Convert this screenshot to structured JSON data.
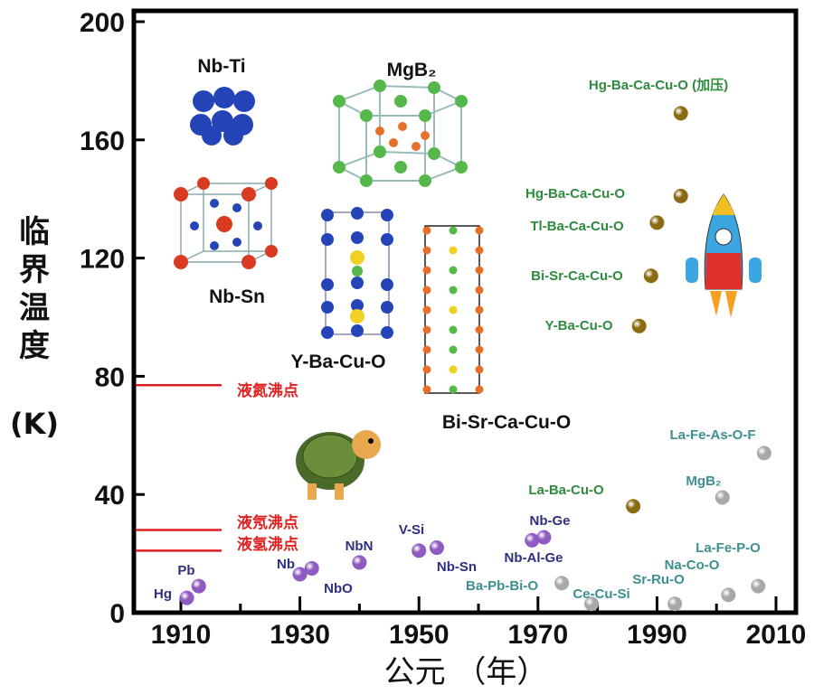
{
  "chart_data": {
    "type": "scatter",
    "title": "",
    "xlabel": "公元 （年）",
    "ylabel_chars": [
      "临",
      "界",
      "温",
      "度"
    ],
    "ylabel_unit": "(K)",
    "xlim": [
      1902,
      2012
    ],
    "ylim": [
      0,
      200
    ],
    "xticks": [
      1910,
      1930,
      1950,
      1970,
      1990,
      2010
    ],
    "yticks": [
      0,
      40,
      80,
      120,
      160,
      200
    ],
    "grid": false,
    "colors": {
      "conventional": "#8e5bc0",
      "other": "#a8a8a8",
      "cuprate": "#8a6a12",
      "conventional_label": "#2d2f80",
      "other_label": "#3d8f8f",
      "cuprate_label": "#2e8b3e",
      "reference": "#e02020"
    },
    "points": [
      {
        "name": "Hg",
        "x": 1911,
        "y": 5,
        "group": "conventional"
      },
      {
        "name": "Pb",
        "x": 1913,
        "y": 9,
        "group": "conventional"
      },
      {
        "name": "Nb",
        "x": 1930,
        "y": 13,
        "group": "conventional"
      },
      {
        "name": "NbO",
        "x": 1932,
        "y": 15,
        "group": "conventional"
      },
      {
        "name": "NbN",
        "x": 1940,
        "y": 17,
        "group": "conventional"
      },
      {
        "name": "V-Si",
        "x": 1950,
        "y": 21,
        "group": "conventional"
      },
      {
        "name": "Nb-Sn",
        "x": 1953,
        "y": 22,
        "group": "conventional"
      },
      {
        "name": "Nb-Ge",
        "x": 1969,
        "y": 24.5,
        "group": "conventional"
      },
      {
        "name": "Nb-Al-Ge",
        "x": 1971,
        "y": 25.5,
        "group": "conventional"
      },
      {
        "name": "Ba-Pb-Bi-O",
        "x": 1974,
        "y": 10,
        "group": "other"
      },
      {
        "name": "Ce-Cu-Si",
        "x": 1979,
        "y": 3,
        "group": "other"
      },
      {
        "name": "Sr-Ru-O",
        "x": 1993,
        "y": 3,
        "group": "other"
      },
      {
        "name": "Na-Co-O",
        "x": 2002,
        "y": 6,
        "group": "other"
      },
      {
        "name": "La-Fe-P-O",
        "x": 2007,
        "y": 9,
        "group": "other"
      },
      {
        "name": "MgB₂",
        "x": 2001,
        "y": 39,
        "group": "other"
      },
      {
        "name": "La-Fe-As-O-F",
        "x": 2008,
        "y": 54,
        "group": "other"
      },
      {
        "name": "La-Ba-Cu-O",
        "x": 1986,
        "y": 36,
        "group": "cuprate"
      },
      {
        "name": "Y-Ba-Cu-O",
        "x": 1987,
        "y": 97,
        "group": "cuprate"
      },
      {
        "name": "Bi-Sr-Ca-Cu-O",
        "x": 1989,
        "y": 114,
        "group": "cuprate"
      },
      {
        "name": "Tl-Ba-Ca-Cu-O",
        "x": 1990,
        "y": 132,
        "group": "cuprate"
      },
      {
        "name": "Hg-Ba-Ca-Cu-O",
        "x": 1994,
        "y": 141,
        "group": "cuprate"
      },
      {
        "name": "Hg-Ba-Ca-Cu-O (加压)",
        "x": 1994,
        "y": 169,
        "group": "cuprate"
      }
    ],
    "reference_lines": [
      {
        "label": "液氮沸点",
        "y": 77
      },
      {
        "label": "液氖沸点",
        "y": 28
      },
      {
        "label": "液氢沸点",
        "y": 21
      }
    ],
    "structures": [
      "Nb-Ti",
      "MgB₂",
      "Nb-Sn",
      "Y-Ba-Cu-O",
      "Bi-Sr-Ca-Cu-O"
    ]
  }
}
